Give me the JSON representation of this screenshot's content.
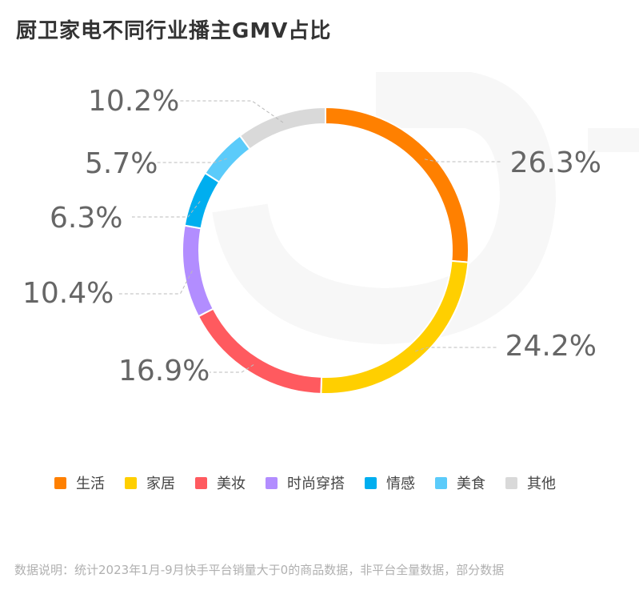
{
  "title": "厨卫家电不同行业播主GMV占比",
  "chart_data": {
    "type": "pie",
    "subtype": "donut",
    "title": "厨卫家电不同行业播主GMV占比",
    "labels": [
      "生活",
      "家居",
      "美妆",
      "时尚穿搭",
      "情感",
      "美食",
      "其他"
    ],
    "values": [
      26.3,
      24.2,
      16.9,
      10.4,
      6.3,
      5.7,
      10.2
    ],
    "value_labels": [
      "26.3%",
      "24.2%",
      "16.9%",
      "10.4%",
      "6.3%",
      "5.7%",
      "10.2%"
    ],
    "colors": [
      "#FF8000",
      "#FFCF00",
      "#FF5A5F",
      "#B28DFF",
      "#00AEEF",
      "#5BCBFA",
      "#D9D9D9"
    ],
    "legend": "bottom"
  },
  "note": "数据说明：统计2023年1月-9月快手平台销量大于0的商品数据，非平台全量数据，部分数据"
}
